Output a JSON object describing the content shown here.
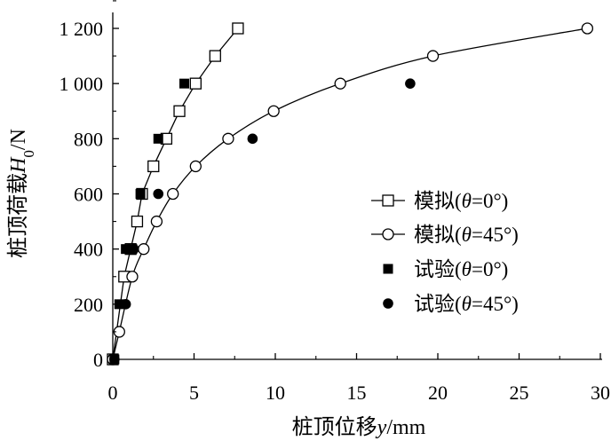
{
  "chart_data": {
    "type": "scatter",
    "title": "",
    "xlabel": "桩顶位移y/mm",
    "ylabel": "桩顶荷载H0/N",
    "xlabel_parts": [
      {
        "text": "桩顶位移",
        "italic": false,
        "sub": false
      },
      {
        "text": "y",
        "italic": true,
        "sub": false
      },
      {
        "text": "/mm",
        "italic": false,
        "sub": false
      }
    ],
    "ylabel_parts": [
      {
        "text": "桩顶荷载",
        "italic": false,
        "sub": false
      },
      {
        "text": "H",
        "italic": true,
        "sub": false
      },
      {
        "text": "0",
        "italic": false,
        "sub": true
      },
      {
        "text": "/N",
        "italic": false,
        "sub": false
      }
    ],
    "xlim": [
      0,
      30
    ],
    "ylim": [
      0,
      1200
    ],
    "xticks": [
      0,
      5,
      10,
      15,
      20,
      25,
      30
    ],
    "xtick_labels": [
      "0",
      "5",
      "10",
      "15",
      "20",
      "25",
      "30"
    ],
    "yticks": [
      0,
      200,
      400,
      600,
      800,
      1000,
      1200
    ],
    "ytick_labels": [
      "0",
      "200",
      "400",
      "600",
      "800",
      "1 000",
      "1 200"
    ],
    "grid": false,
    "legend_position": "center-right",
    "series": [
      {
        "name": "模拟(θ=0°)",
        "name_parts": [
          {
            "text": "模拟(",
            "italic": false
          },
          {
            "text": "θ",
            "italic": true
          },
          {
            "text": "=0°)",
            "italic": false
          }
        ],
        "marker": "square-open",
        "line": true,
        "points": [
          [
            0,
            0
          ],
          [
            0.7,
            300
          ],
          [
            1.1,
            400
          ],
          [
            1.5,
            500
          ],
          [
            1.8,
            600
          ],
          [
            2.5,
            700
          ],
          [
            3.3,
            800
          ],
          [
            4.1,
            900
          ],
          [
            5.1,
            1000
          ],
          [
            6.3,
            1100
          ],
          [
            7.7,
            1200
          ]
        ]
      },
      {
        "name": "模拟(θ=45°)",
        "name_parts": [
          {
            "text": "模拟(",
            "italic": false
          },
          {
            "text": "θ",
            "italic": true
          },
          {
            "text": "=45°)",
            "italic": false
          }
        ],
        "marker": "circle-open",
        "line": true,
        "points": [
          [
            0,
            0
          ],
          [
            0.4,
            100
          ],
          [
            1.2,
            300
          ],
          [
            1.9,
            400
          ],
          [
            2.7,
            500
          ],
          [
            3.7,
            600
          ],
          [
            5.1,
            700
          ],
          [
            7.1,
            800
          ],
          [
            9.9,
            900
          ],
          [
            14.0,
            1000
          ],
          [
            19.7,
            1100
          ],
          [
            29.2,
            1200
          ]
        ]
      },
      {
        "name": "试验(θ=0°)",
        "name_parts": [
          {
            "text": "试验(",
            "italic": false
          },
          {
            "text": "θ",
            "italic": true
          },
          {
            "text": "=0°)",
            "italic": false
          }
        ],
        "marker": "square-filled",
        "line": false,
        "points": [
          [
            0.1,
            0
          ],
          [
            0.4,
            200
          ],
          [
            0.8,
            400
          ],
          [
            1.2,
            400
          ],
          [
            1.7,
            600
          ],
          [
            2.8,
            800
          ],
          [
            4.4,
            1000
          ]
        ]
      },
      {
        "name": "试验(θ=45°)",
        "name_parts": [
          {
            "text": "试验(",
            "italic": false
          },
          {
            "text": "θ",
            "italic": true
          },
          {
            "text": "=45°)",
            "italic": false
          }
        ],
        "marker": "circle-filled",
        "line": false,
        "points": [
          [
            0.1,
            0
          ],
          [
            0.8,
            200
          ],
          [
            1.3,
            400
          ],
          [
            2.8,
            600
          ],
          [
            8.6,
            800
          ],
          [
            18.3,
            1000
          ]
        ]
      }
    ]
  }
}
